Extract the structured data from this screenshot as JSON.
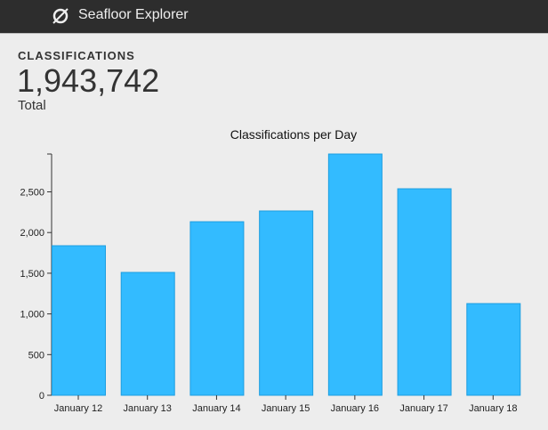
{
  "header": {
    "title": "Seafloor Explorer",
    "logo_icon": "compass-icon"
  },
  "stat": {
    "label": "CLASSIFICATIONS",
    "value": "1,943,742",
    "sublabel": "Total"
  },
  "chart_data": {
    "type": "bar",
    "title": "Classifications per Day",
    "categories": [
      "January 12",
      "January 13",
      "January 14",
      "January 15",
      "January 16",
      "January 17",
      "January 18"
    ],
    "values": [
      1838,
      1510,
      2133,
      2265,
      2965,
      2538,
      1127
    ],
    "ylim": [
      0,
      2965
    ],
    "yticks": [
      0,
      500,
      1000,
      1500,
      2000,
      2500
    ],
    "ytick_labels": [
      "0",
      "500",
      "1,000",
      "1,500",
      "2,000",
      "2,500"
    ],
    "xlabel": "",
    "ylabel": "",
    "grid": false,
    "bar_color": "#33bbff",
    "bar_stroke": "#1d9ee0"
  }
}
